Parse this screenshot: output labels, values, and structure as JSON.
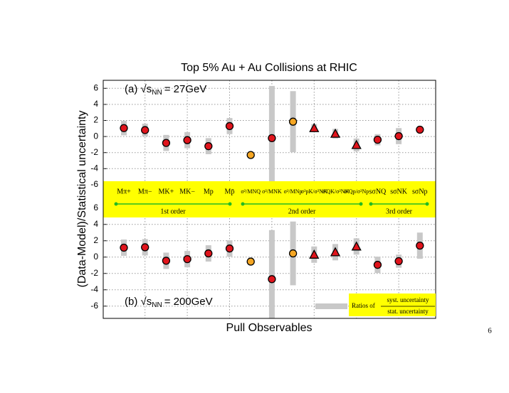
{
  "page_number": "6",
  "chart_data": {
    "type": "scatter",
    "title": "Top 5% Au + Au Collisions at RHIC",
    "ylabel": "(Data-Model)/Statistical uncertainty",
    "xlabel": "Pull Observables",
    "categories": [
      "Mπ+",
      "Mπ−",
      "MK+",
      "MK−",
      "Mp",
      "Mp̄",
      "σ²/MNQ",
      "σ²/MNK",
      "σ²/MNp",
      "σ²pK/σ²NK",
      "σ²QK/σ²NK",
      "σ²Qp/σ²Np",
      "sσNQ",
      "sσNK",
      "sσNp"
    ],
    "group_labels": [
      "1st order",
      "2nd order",
      "3rd order"
    ],
    "markers": [
      "circle",
      "circle",
      "circle",
      "circle",
      "circle",
      "circle",
      "circle",
      "circle",
      "circle",
      "triangle",
      "triangle",
      "triangle",
      "circle",
      "circle",
      "circle"
    ],
    "marker_colors": [
      "#e0141c",
      "#e0141c",
      "#e0141c",
      "#e0141c",
      "#e0141c",
      "#e0141c",
      "#f5a623",
      "#e0141c",
      "#f5a623",
      "#e0141c",
      "#e0141c",
      "#e0141c",
      "#e0141c",
      "#e0141c",
      "#e0141c"
    ],
    "error_color": "#c8c8c8",
    "band_color": "#ffff00",
    "group_line_color": "#22bb22",
    "grid": true,
    "panels": [
      {
        "label_parts": [
          "(a) √s",
          "NN",
          "= 27GeV"
        ],
        "ylim": [
          -6.45,
          7
        ],
        "yticks": [
          -6,
          -4,
          -2,
          0,
          2,
          4,
          6
        ],
        "values": [
          1.05,
          0.8,
          -0.8,
          -0.45,
          -1.2,
          1.3,
          -2.3,
          -0.2,
          1.85,
          1.05,
          0.35,
          -1.05,
          -0.4,
          0.05,
          0.85
        ],
        "errors": [
          0.9,
          0.8,
          1,
          1,
          1,
          1,
          0.3,
          6.5,
          3.8,
          0.5,
          0.6,
          0.8,
          0.7,
          1,
          0.3
        ]
      },
      {
        "label_parts": [
          "(b) √s",
          "NN",
          "= 200GeV"
        ],
        "ylim": [
          -7.5,
          6.5
        ],
        "yticks": [
          -6,
          -4,
          -2,
          0,
          2,
          4,
          6
        ],
        "values": [
          1.15,
          1.2,
          -0.45,
          -0.25,
          0.45,
          1.05,
          -0.55,
          -2.7,
          0.45,
          0.3,
          0.6,
          1.3,
          -0.95,
          -0.5,
          1.4
        ],
        "errors": [
          1,
          1,
          1,
          1,
          1,
          1,
          0.3,
          6,
          3.9,
          1,
          1,
          1,
          1,
          0.8,
          1.6
        ]
      }
    ],
    "legend": {
      "prefix": "Ratios of",
      "numerator": "syst. uncertainty",
      "denominator": "stat. uncertainty"
    }
  }
}
